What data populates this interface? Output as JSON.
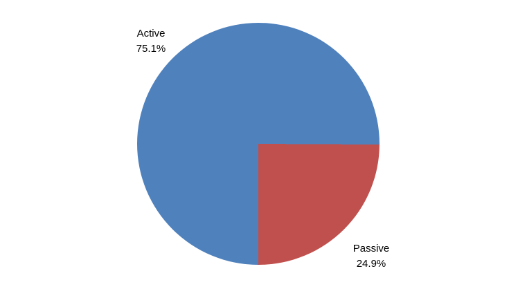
{
  "chart_data": {
    "type": "pie",
    "title": "",
    "categories": [
      "Active",
      "Passive"
    ],
    "values": [
      75.1,
      24.9
    ],
    "slices": [
      {
        "label": "Active",
        "value": 75.1,
        "value_label": "75.1%",
        "color": "#4F81BD"
      },
      {
        "label": "Passive",
        "value": 24.9,
        "value_label": "24.9%",
        "color": "#C0504D"
      }
    ],
    "start_angle_deg": 180,
    "legend": "none",
    "data_labels": "category name + percent, outside",
    "background_color": "#FFFFFF"
  }
}
